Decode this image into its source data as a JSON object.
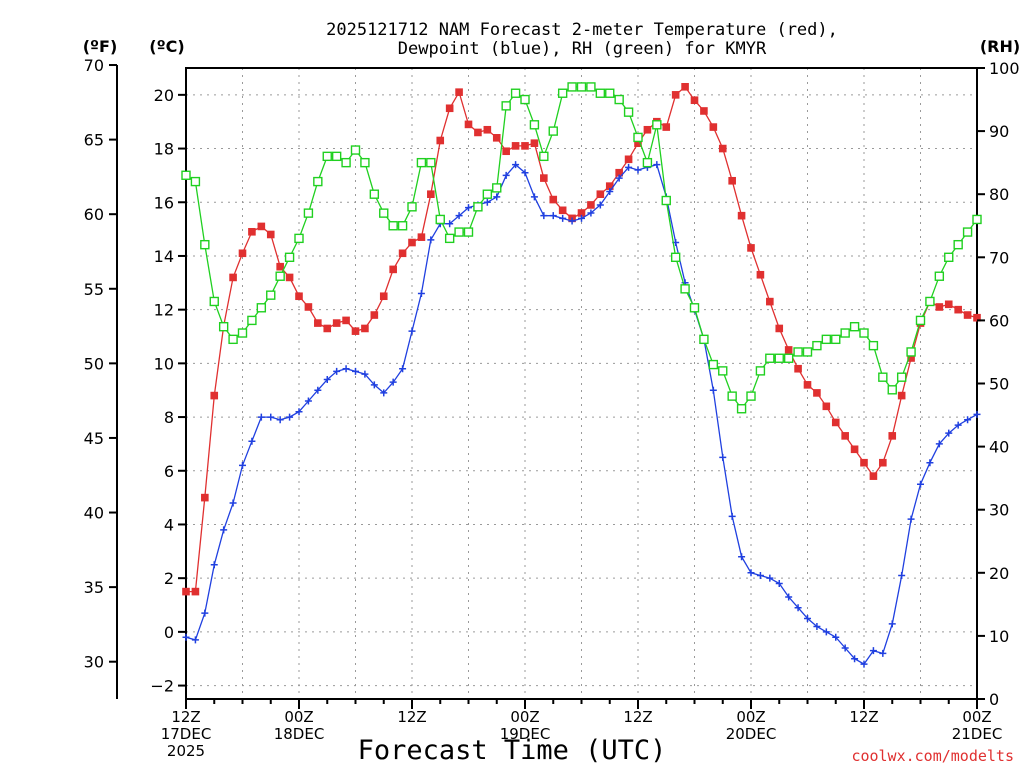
{
  "chart_data": {
    "type": "line",
    "title": [
      "2025121712 NAM Forecast 2-meter Temperature (red),",
      "Dewpoint (blue), RH (green) for KMYR"
    ],
    "xlabel": "Forecast Time (UTC)",
    "credit": "coolwx.com/modelts",
    "x_ticks": [
      {
        "hour": 0,
        "lines": [
          "12Z",
          "17DEC",
          "2025"
        ]
      },
      {
        "hour": 12,
        "lines": [
          "00Z",
          "18DEC"
        ]
      },
      {
        "hour": 24,
        "lines": [
          "12Z"
        ]
      },
      {
        "hour": 36,
        "lines": [
          "00Z",
          "19DEC"
        ]
      },
      {
        "hour": 48,
        "lines": [
          "12Z"
        ]
      },
      {
        "hour": 60,
        "lines": [
          "00Z",
          "20DEC"
        ]
      },
      {
        "hour": 72,
        "lines": [
          "12Z"
        ]
      },
      {
        "hour": 84,
        "lines": [
          "00Z",
          "21DEC"
        ]
      }
    ],
    "x_range": [
      0,
      84
    ],
    "left_axis_c": {
      "label": "(ºC)",
      "range": [
        -2.5,
        21.0
      ],
      "ticks": [
        -2,
        0,
        2,
        4,
        6,
        8,
        10,
        12,
        14,
        16,
        18,
        20
      ],
      "tick_labels": [
        "−2",
        "0",
        "2",
        "4",
        "6",
        "8",
        "10",
        "12",
        "14",
        "16",
        "18",
        "20"
      ]
    },
    "left_axis_f": {
      "label": "(ºF)",
      "ticks": [
        30,
        35,
        40,
        45,
        50,
        55,
        60,
        65,
        70
      ],
      "tick_labels": [
        "30",
        "35",
        "40",
        "45",
        "50",
        "55",
        "60",
        "65",
        "70"
      ]
    },
    "right_axis_rh": {
      "label": "(RH)",
      "range": [
        0,
        100
      ],
      "ticks": [
        0,
        10,
        20,
        30,
        40,
        50,
        60,
        70,
        80,
        90,
        100
      ],
      "tick_labels": [
        "0",
        "10",
        "20",
        "30",
        "40",
        "50",
        "60",
        "70",
        "80",
        "90",
        "100"
      ]
    },
    "series": [
      {
        "name": "Temperature (red)",
        "axis": "C",
        "color": "#e03030",
        "marker": "filled-square",
        "x": [
          0,
          1,
          2,
          3,
          4,
          5,
          6,
          7,
          8,
          9,
          10,
          11,
          12,
          13,
          14,
          15,
          16,
          17,
          18,
          19,
          20,
          21,
          22,
          23,
          24,
          25,
          26,
          27,
          28,
          29,
          30,
          31,
          32,
          33,
          34,
          35,
          36,
          37,
          38,
          39,
          40,
          41,
          42,
          43,
          44,
          45,
          46,
          47,
          48,
          49,
          50,
          51,
          52,
          53,
          54,
          55,
          56,
          57,
          58,
          59,
          60,
          61,
          62,
          63,
          64,
          65,
          66,
          67,
          68,
          69,
          70,
          71,
          72,
          73,
          74,
          75,
          76,
          77,
          78,
          79,
          80,
          81,
          82,
          83,
          84
        ],
        "values": [
          1.5,
          1.5,
          5.0,
          8.8,
          11.4,
          13.2,
          14.1,
          14.9,
          15.1,
          14.8,
          13.6,
          13.2,
          12.5,
          12.1,
          11.5,
          11.3,
          11.5,
          11.6,
          11.2,
          11.3,
          11.8,
          12.5,
          13.5,
          14.1,
          14.5,
          14.7,
          16.3,
          18.3,
          19.5,
          20.1,
          18.9,
          18.6,
          18.7,
          18.4,
          17.9,
          18.1,
          18.1,
          18.2,
          16.9,
          16.1,
          15.7,
          15.4,
          15.6,
          15.9,
          16.3,
          16.6,
          17.1,
          17.6,
          18.2,
          18.7,
          19.0,
          18.8,
          20.0,
          20.3,
          19.8,
          19.4,
          18.8,
          18.0,
          16.8,
          15.5,
          14.3,
          13.3,
          12.3,
          11.3,
          10.5,
          9.8,
          9.2,
          8.9,
          8.4,
          7.8,
          7.3,
          6.8,
          6.3,
          5.8,
          6.3,
          7.3,
          8.8,
          10.2,
          11.5,
          12.3,
          12.1,
          12.2,
          12.0,
          11.8,
          11.7
        ]
      },
      {
        "name": "Dewpoint (blue)",
        "axis": "C",
        "color": "#2040e0",
        "marker": "plus",
        "x": [
          0,
          1,
          2,
          3,
          4,
          5,
          6,
          7,
          8,
          9,
          10,
          11,
          12,
          13,
          14,
          15,
          16,
          17,
          18,
          19,
          20,
          21,
          22,
          23,
          24,
          25,
          26,
          27,
          28,
          29,
          30,
          31,
          32,
          33,
          34,
          35,
          36,
          37,
          38,
          39,
          40,
          41,
          42,
          43,
          44,
          45,
          46,
          47,
          48,
          49,
          50,
          51,
          52,
          53,
          54,
          55,
          56,
          57,
          58,
          59,
          60,
          61,
          62,
          63,
          64,
          65,
          66,
          67,
          68,
          69,
          70,
          71,
          72,
          73,
          74,
          75,
          76,
          77,
          78,
          79,
          80,
          81,
          82,
          83,
          84
        ],
        "values": [
          -0.2,
          -0.3,
          0.7,
          2.5,
          3.8,
          4.8,
          6.2,
          7.1,
          8.0,
          8.0,
          7.9,
          8.0,
          8.2,
          8.6,
          9.0,
          9.4,
          9.7,
          9.8,
          9.7,
          9.6,
          9.2,
          8.9,
          9.3,
          9.8,
          11.2,
          12.6,
          14.6,
          15.2,
          15.2,
          15.5,
          15.8,
          15.9,
          16.0,
          16.2,
          17.0,
          17.4,
          17.1,
          16.2,
          15.5,
          15.5,
          15.4,
          15.3,
          15.4,
          15.6,
          15.9,
          16.4,
          16.9,
          17.3,
          17.2,
          17.3,
          17.4,
          16.2,
          14.5,
          13.0,
          12.0,
          10.9,
          9.0,
          6.5,
          4.3,
          2.8,
          2.2,
          2.1,
          2.0,
          1.8,
          1.3,
          0.9,
          0.5,
          0.2,
          0.0,
          -0.2,
          -0.6,
          -1.0,
          -1.2,
          -0.7,
          -0.8,
          0.3,
          2.1,
          4.2,
          5.5,
          6.3,
          7.0,
          7.4,
          7.7,
          7.9,
          8.1
        ]
      },
      {
        "name": "RH (green)",
        "axis": "RH",
        "color": "#20d020",
        "marker": "open-square",
        "x": [
          0,
          1,
          2,
          3,
          4,
          5,
          6,
          7,
          8,
          9,
          10,
          11,
          12,
          13,
          14,
          15,
          16,
          17,
          18,
          19,
          20,
          21,
          22,
          23,
          24,
          25,
          26,
          27,
          28,
          29,
          30,
          31,
          32,
          33,
          34,
          35,
          36,
          37,
          38,
          39,
          40,
          41,
          42,
          43,
          44,
          45,
          46,
          47,
          48,
          49,
          50,
          51,
          52,
          53,
          54,
          55,
          56,
          57,
          58,
          59,
          60,
          61,
          62,
          63,
          64,
          65,
          66,
          67,
          68,
          69,
          70,
          71,
          72,
          73,
          74,
          75,
          76,
          77,
          78,
          79,
          80,
          81,
          82,
          83,
          84
        ],
        "values": [
          83,
          82,
          72,
          63,
          59,
          57,
          58,
          60,
          62,
          64,
          67,
          70,
          73,
          77,
          82,
          86,
          86,
          85,
          87,
          85,
          80,
          77,
          75,
          75,
          78,
          85,
          85,
          76,
          73,
          74,
          74,
          78,
          80,
          81,
          94,
          96,
          95,
          91,
          86,
          90,
          96,
          97,
          97,
          97,
          96,
          96,
          95,
          93,
          89,
          85,
          91,
          79,
          70,
          65,
          62,
          57,
          53,
          52,
          48,
          46,
          48,
          52,
          54,
          54,
          54,
          55,
          55,
          56,
          57,
          57,
          58,
          59,
          58,
          56,
          51,
          49,
          51,
          55,
          60,
          63,
          67,
          70,
          72,
          74,
          76
        ]
      }
    ]
  }
}
